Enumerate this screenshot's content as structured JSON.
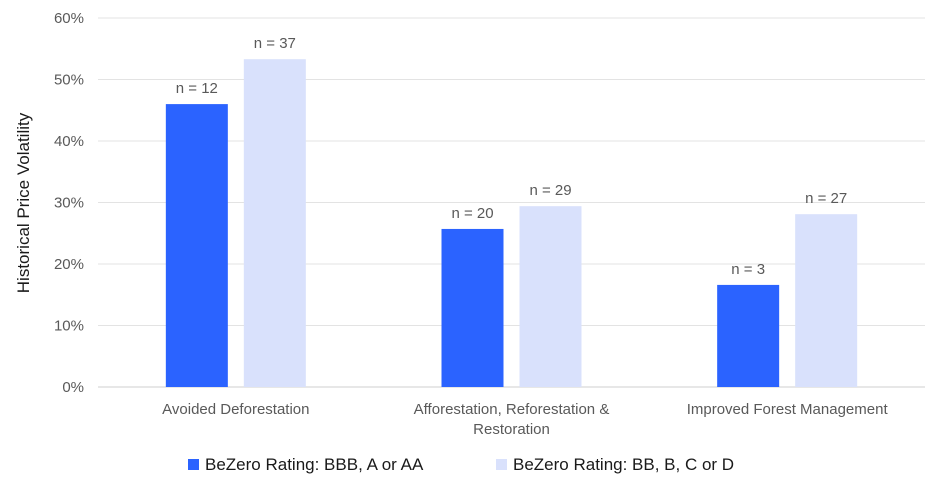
{
  "chart_data": {
    "type": "bar",
    "title": "",
    "xlabel": "",
    "ylabel": "Historical Price Volatility",
    "ylim": [
      0,
      60
    ],
    "yticks": [
      "0%",
      "10%",
      "20%",
      "30%",
      "40%",
      "50%",
      "60%"
    ],
    "grid": true,
    "legend_position": "bottom",
    "categories": [
      [
        "Avoided Deforestation"
      ],
      [
        "Afforestation, Reforestation &",
        "Restoration"
      ],
      [
        "Improved Forest Management"
      ]
    ],
    "series": [
      {
        "name": "BeZero Rating: BBB, A or AA",
        "color": "#2B63FF",
        "values": [
          46.0,
          25.7,
          16.6
        ],
        "labels": [
          "n = 12",
          "n = 20",
          "n = 3"
        ]
      },
      {
        "name": "BeZero Rating: BB, B, C or D",
        "color": "#D9E1FC",
        "values": [
          53.3,
          29.4,
          28.1
        ],
        "labels": [
          "n = 37",
          "n = 29",
          "n = 27"
        ]
      }
    ]
  }
}
